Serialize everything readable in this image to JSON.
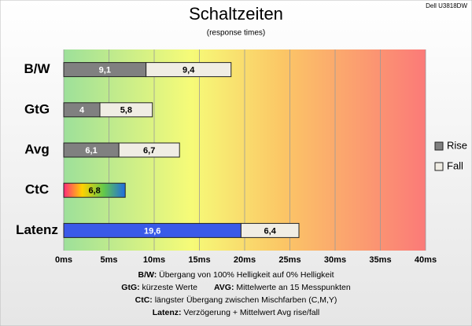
{
  "chart_data": {
    "type": "bar",
    "orientation": "horizontal",
    "stacked": true,
    "title": "Schaltzeiten",
    "subtitle": "(response times)",
    "corner_label": "Dell U3818DW",
    "categories": [
      "B/W",
      "GtG",
      "Avg",
      "CtC",
      "Latenz"
    ],
    "series": [
      {
        "name": "Rise",
        "color": "#808080",
        "point_colors": [
          "#808080",
          "#808080",
          "#808080",
          "url(#rainbow)",
          "#3a5ae8"
        ],
        "values": [
          9.1,
          4,
          6.1,
          6.8,
          19.6
        ],
        "value_labels": [
          "9,1",
          "4",
          "6,1",
          "6,8",
          "19,6"
        ]
      },
      {
        "name": "Fall",
        "color": "#f0ede4",
        "values": [
          9.4,
          5.8,
          6.7,
          null,
          6.4
        ],
        "value_labels": [
          "9,4",
          "5,8",
          "6,7",
          null,
          "6,4"
        ]
      }
    ],
    "xlim": [
      0,
      40
    ],
    "xticks": [
      {
        "value": 0,
        "label": "0ms"
      },
      {
        "value": 5,
        "label": "5ms"
      },
      {
        "value": 10,
        "label": "10ms"
      },
      {
        "value": 15,
        "label": "15ms"
      },
      {
        "value": 20,
        "label": "20ms"
      },
      {
        "value": 25,
        "label": "25ms"
      },
      {
        "value": 30,
        "label": "30ms"
      },
      {
        "value": 35,
        "label": "35ms"
      },
      {
        "value": 40,
        "label": "40ms"
      }
    ],
    "grid": true,
    "legend": "right",
    "notes": [
      [
        {
          "term": "B/W:",
          "text": "Übergang von 100% Helligkeit auf 0% Helligkeit"
        }
      ],
      [
        {
          "term": "GtG:",
          "text": "kürzeste Werte"
        },
        {
          "term": "AVG:",
          "text": "Mittelwerte an 15 Messpunkten"
        }
      ],
      [
        {
          "term": "CtC:",
          "text": "längster Übergang zwischen Mischfarben (C,M,Y)"
        }
      ],
      [
        {
          "term": "Latenz:",
          "text": "Verzögerung + Mittelwert Avg rise/fall"
        }
      ]
    ]
  }
}
